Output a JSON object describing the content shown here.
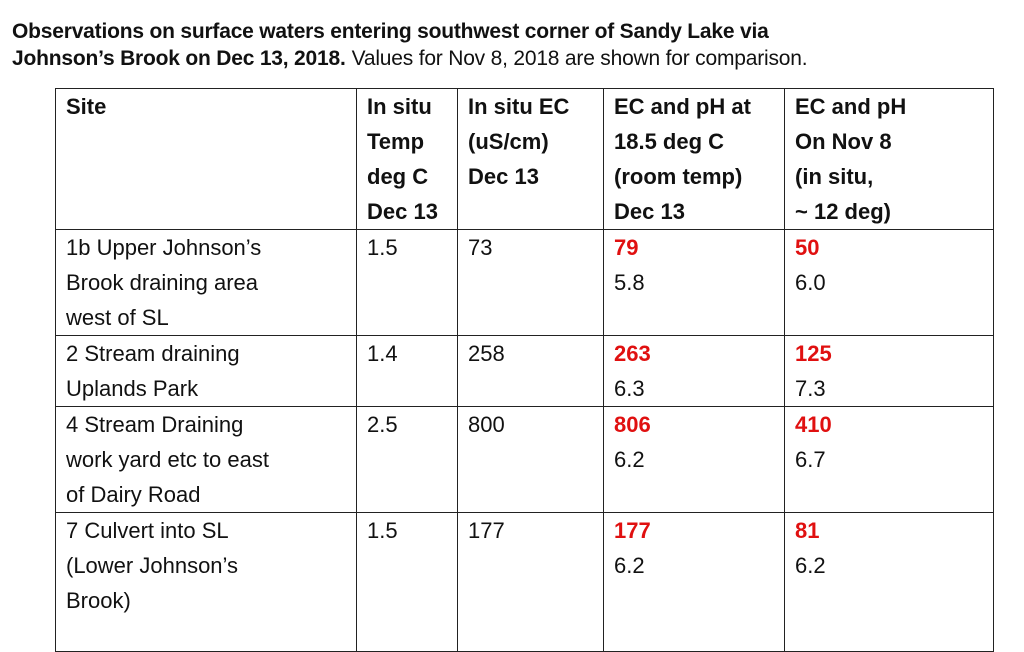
{
  "title": {
    "bold": [
      "Observations on surface waters entering southwest corner of Sandy Lake via",
      "Johnson’s Brook on Dec 13, 2018."
    ],
    "rest": "Values for Nov 8, 2018 are shown for comparison."
  },
  "table": {
    "headers": [
      [
        "Site"
      ],
      [
        "In situ",
        "Temp",
        "deg C",
        "Dec 13"
      ],
      [
        "In situ EC",
        "(uS/cm)",
        "Dec 13"
      ],
      [
        "EC and pH at",
        "18.5 deg C",
        "(room temp)",
        "Dec 13"
      ],
      [
        "EC and pH",
        "On Nov 8",
        "(in situ,",
        "~ 12 deg)"
      ]
    ],
    "rows": [
      {
        "site": [
          "1b   Upper Johnson’s",
          "Brook draining area",
          "west of SL"
        ],
        "temp": "1.5",
        "ec": "73",
        "dec13": {
          "ec": "79",
          "ph": "5.8"
        },
        "nov8": {
          "ec": "50",
          "ph": "6.0"
        }
      },
      {
        "site": [
          "2   Stream draining",
          "Uplands Park"
        ],
        "temp": "1.4",
        "ec": "258",
        "dec13": {
          "ec": "263",
          "ph": "6.3"
        },
        "nov8": {
          "ec": "125",
          "ph": "7.3"
        }
      },
      {
        "site": [
          "4  Stream Draining",
          "work yard etc to east",
          "of Dairy Road"
        ],
        "temp": "2.5",
        "ec": "800",
        "dec13": {
          "ec": "806",
          "ph": "6.2"
        },
        "nov8": {
          "ec": "410",
          "ph": "6.7"
        }
      },
      {
        "site": [
          "7 Culvert into SL",
          "(Lower Johnson’s",
          "Brook)"
        ],
        "temp": "1.5",
        "ec": "177",
        "dec13": {
          "ec": "177",
          "ph": "6.2"
        },
        "nov8": {
          "ec": "81",
          "ph": "6.2"
        }
      }
    ]
  }
}
